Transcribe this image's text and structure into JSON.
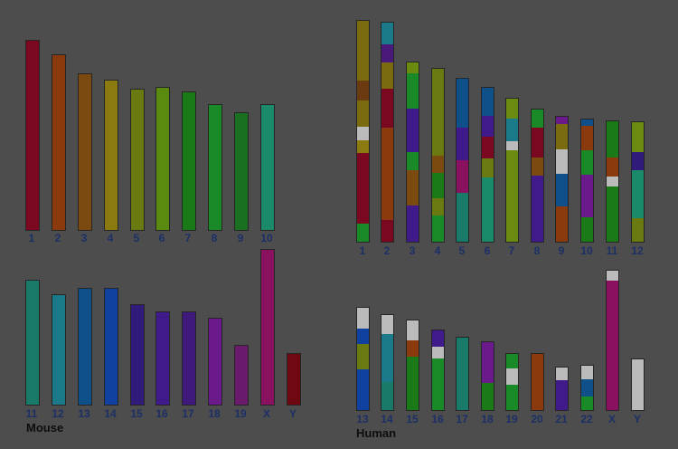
{
  "mouse": {
    "species_label": "Mouse",
    "chromosomes": [
      {
        "label": "1",
        "color": "#7a0820"
      },
      {
        "label": "2",
        "color": "#8a3a0c"
      },
      {
        "label": "3",
        "color": "#7a4a10"
      },
      {
        "label": "4",
        "color": "#8a7a10"
      },
      {
        "label": "5",
        "color": "#6a7a10"
      },
      {
        "label": "6",
        "color": "#5a8a10"
      },
      {
        "label": "7",
        "color": "#1a7a18"
      },
      {
        "label": "8",
        "color": "#1a8a28"
      },
      {
        "label": "9",
        "color": "#187020"
      },
      {
        "label": "10",
        "color": "#1a8a6a"
      },
      {
        "label": "11",
        "color": "#1a7a6a"
      },
      {
        "label": "12",
        "color": "#1a7a8a"
      },
      {
        "label": "13",
        "color": "#10508a"
      },
      {
        "label": "14",
        "color": "#1040a0"
      },
      {
        "label": "15",
        "color": "#301a7a"
      },
      {
        "label": "16",
        "color": "#401a8a"
      },
      {
        "label": "17",
        "color": "#401a7a"
      },
      {
        "label": "18",
        "color": "#6a1a8a"
      },
      {
        "label": "19",
        "color": "#6a1a6a"
      },
      {
        "label": "X",
        "color": "#8a1060"
      },
      {
        "label": "Y",
        "color": "#700812"
      }
    ]
  },
  "human": {
    "species_label": "Human",
    "chromosomes": [
      {
        "label": "1",
        "bands": [
          [
            "#7a6a10",
            0.27
          ],
          [
            "#6a3a10",
            0.09
          ],
          [
            "#7a6a10",
            0.12
          ],
          [
            "#bbbbbb",
            0.06
          ],
          [
            "#8a7a10",
            0.06
          ],
          [
            "#7a0820",
            0.32
          ],
          [
            "#1a8a28",
            0.08
          ]
        ]
      },
      {
        "label": "2",
        "bands": [
          [
            "#1a7a8a",
            0.1
          ],
          [
            "#4a1a7a",
            0.08
          ],
          [
            "#7a6a10",
            0.12
          ],
          [
            "#7a0820",
            0.18
          ],
          [
            "#8a3a0c",
            0.42
          ],
          [
            "#7a0820",
            0.1
          ]
        ]
      },
      {
        "label": "3",
        "bands": [
          [
            "#6a8a10",
            0.06
          ],
          [
            "#1a8a28",
            0.2
          ],
          [
            "#401a8a",
            0.24
          ],
          [
            "#1a8a28",
            0.1
          ],
          [
            "#7a4a10",
            0.2
          ],
          [
            "#401a8a",
            0.2
          ]
        ]
      },
      {
        "label": "4",
        "bands": [
          [
            "#6a7a10",
            0.5
          ],
          [
            "#7a4a10",
            0.1
          ],
          [
            "#1a7a18",
            0.15
          ],
          [
            "#6a7a10",
            0.1
          ],
          [
            "#1a8a28",
            0.15
          ]
        ]
      },
      {
        "label": "5",
        "bands": [
          [
            "#10508a",
            0.3
          ],
          [
            "#401a8a",
            0.2
          ],
          [
            "#8a1060",
            0.2
          ],
          [
            "#1a7a6a",
            0.3
          ]
        ]
      },
      {
        "label": "6",
        "bands": [
          [
            "#10508a",
            0.18
          ],
          [
            "#401a8a",
            0.14
          ],
          [
            "#7a0820",
            0.14
          ],
          [
            "#6a7a10",
            0.12
          ],
          [
            "#1a8a6a",
            0.42
          ]
        ]
      },
      {
        "label": "7",
        "bands": [
          [
            "#6a8a10",
            0.14
          ],
          [
            "#1a7a8a",
            0.16
          ],
          [
            "#bbbbbb",
            0.06
          ],
          [
            "#6a8a10",
            0.64
          ]
        ]
      },
      {
        "label": "8",
        "bands": [
          [
            "#1a8a28",
            0.14
          ],
          [
            "#7a0820",
            0.22
          ],
          [
            "#7a4a10",
            0.14
          ],
          [
            "#401a8a",
            0.5
          ]
        ]
      },
      {
        "label": "9",
        "bands": [
          [
            "#6a1a8a",
            0.06
          ],
          [
            "#7a6a10",
            0.2
          ],
          [
            "#bbbbbb",
            0.2
          ],
          [
            "#10508a",
            0.26
          ],
          [
            "#8a3a0c",
            0.28
          ]
        ]
      },
      {
        "label": "10",
        "bands": [
          [
            "#10508a",
            0.05
          ],
          [
            "#8a3a0c",
            0.2
          ],
          [
            "#1a8a28",
            0.2
          ],
          [
            "#6a1a8a",
            0.35
          ],
          [
            "#1a7a18",
            0.2
          ]
        ]
      },
      {
        "label": "11",
        "bands": [
          [
            "#1a7a18",
            0.3
          ],
          [
            "#8a3a0c",
            0.16
          ],
          [
            "#bbbbbb",
            0.08
          ],
          [
            "#1a7a18",
            0.46
          ]
        ]
      },
      {
        "label": "12",
        "bands": [
          [
            "#6a8a10",
            0.25
          ],
          [
            "#301a7a",
            0.15
          ],
          [
            "#1a8a6a",
            0.4
          ],
          [
            "#6a7a10",
            0.2
          ]
        ]
      },
      {
        "label": "13",
        "bands": [
          [
            "#bbbbbb",
            0.2
          ],
          [
            "#1040a0",
            0.15
          ],
          [
            "#6a7a10",
            0.25
          ],
          [
            "#1040a0",
            0.4
          ]
        ]
      },
      {
        "label": "14",
        "bands": [
          [
            "#bbbbbb",
            0.2
          ],
          [
            "#1a7a8a",
            0.5
          ],
          [
            "#1a7a6a",
            0.3
          ]
        ]
      },
      {
        "label": "15",
        "bands": [
          [
            "#bbbbbb",
            0.22
          ],
          [
            "#8a3a0c",
            0.18
          ],
          [
            "#1a7a18",
            0.6
          ]
        ]
      },
      {
        "label": "16",
        "bands": [
          [
            "#401a8a",
            0.2
          ],
          [
            "#bbbbbb",
            0.15
          ],
          [
            "#1a8a28",
            0.65
          ]
        ]
      },
      {
        "label": "17",
        "bands": [
          [
            "#1a7a6a",
            1.0
          ]
        ]
      },
      {
        "label": "18",
        "bands": [
          [
            "#6a1a8a",
            0.6
          ],
          [
            "#1a7a18",
            0.4
          ]
        ]
      },
      {
        "label": "19",
        "bands": [
          [
            "#1a8a28",
            0.25
          ],
          [
            "#bbbbbb",
            0.3
          ],
          [
            "#1a8a28",
            0.45
          ]
        ]
      },
      {
        "label": "20",
        "bands": [
          [
            "#8a3a0c",
            1.0
          ]
        ]
      },
      {
        "label": "21",
        "bands": [
          [
            "#bbbbbb",
            0.3
          ],
          [
            "#401a8a",
            0.7
          ]
        ]
      },
      {
        "label": "22",
        "bands": [
          [
            "#bbbbbb",
            0.3
          ],
          [
            "#10508a",
            0.4
          ],
          [
            "#1a8a28",
            0.3
          ]
        ]
      },
      {
        "label": "X",
        "bands": [
          [
            "#bbbbbb",
            0.07
          ],
          [
            "#8a1060",
            0.93
          ]
        ]
      },
      {
        "label": "Y",
        "bands": [
          [
            "#bbbbbb",
            1.0
          ]
        ]
      }
    ]
  }
}
